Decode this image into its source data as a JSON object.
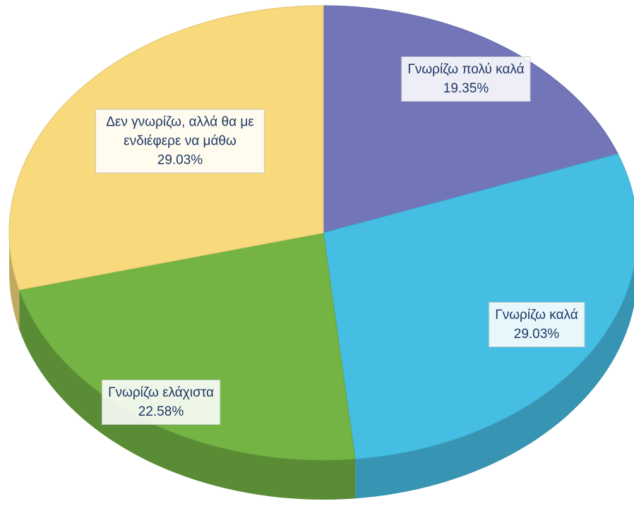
{
  "chart_data": {
    "type": "pie",
    "categories": [
      "Γνωρίζω πολύ καλά",
      "Γνωρίζω καλά",
      "Γνωρίζω ελάχιστα",
      "Δεν γνωρίζω, αλλά θα με ενδιέφερε να μάθω"
    ],
    "values": [
      19.35,
      29.03,
      22.58,
      29.03
    ],
    "value_labels": [
      "19.35%",
      "29.03%",
      "22.58%",
      "29.03%"
    ],
    "colors": [
      "#7276b9",
      "#46bee4",
      "#73b445",
      "#f8d97c"
    ]
  }
}
